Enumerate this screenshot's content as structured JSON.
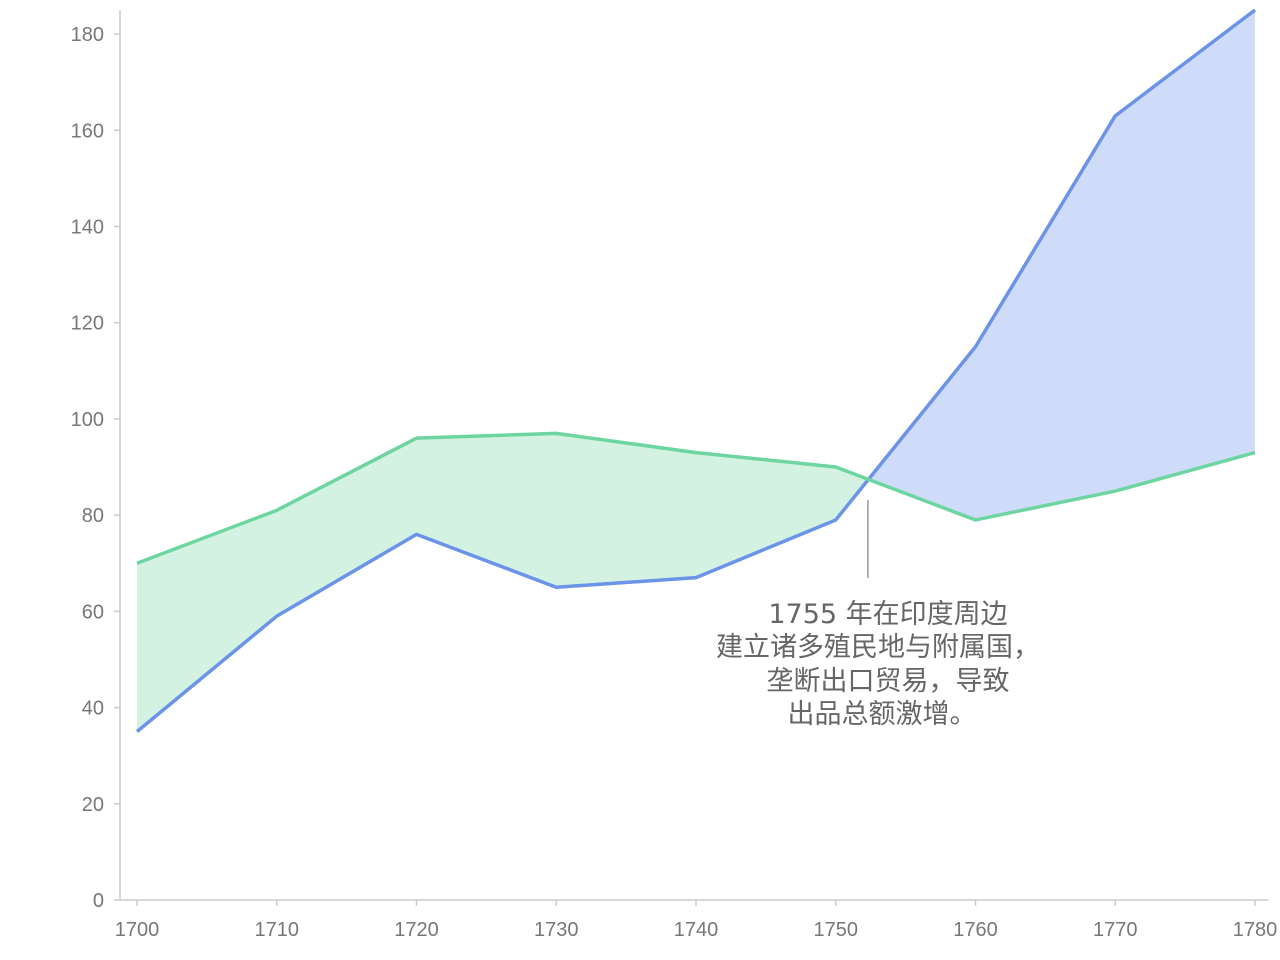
{
  "chart_data": {
    "type": "area",
    "x": [
      1700,
      1710,
      1720,
      1730,
      1740,
      1750,
      1760,
      1770,
      1780
    ],
    "series": [
      {
        "values": [
          35,
          59,
          76,
          65,
          67,
          79,
          115,
          163,
          185
        ],
        "color": "#6b93e8"
      },
      {
        "values": [
          70,
          81,
          96,
          97,
          93,
          90,
          79,
          85,
          93
        ],
        "color": "#6dd5a0"
      }
    ],
    "fill_colors": {
      "series1_above": "#cfdcf9",
      "series2_above": "#d3f2e2"
    },
    "xlim": [
      1700,
      1780
    ],
    "ylim": [
      0,
      185
    ],
    "xticks": [
      1700,
      1710,
      1720,
      1730,
      1740,
      1750,
      1760,
      1770,
      1780
    ],
    "yticks": [
      0,
      20,
      40,
      60,
      80,
      100,
      120,
      140,
      160,
      180
    ],
    "grid": false,
    "annotation": {
      "x": 1752.3,
      "lines": [
        "1755 年在印度周边",
        "建立诸多殖民地与附属国，",
        "垄断出口贸易，导致",
        "出品总额激增。"
      ]
    }
  }
}
